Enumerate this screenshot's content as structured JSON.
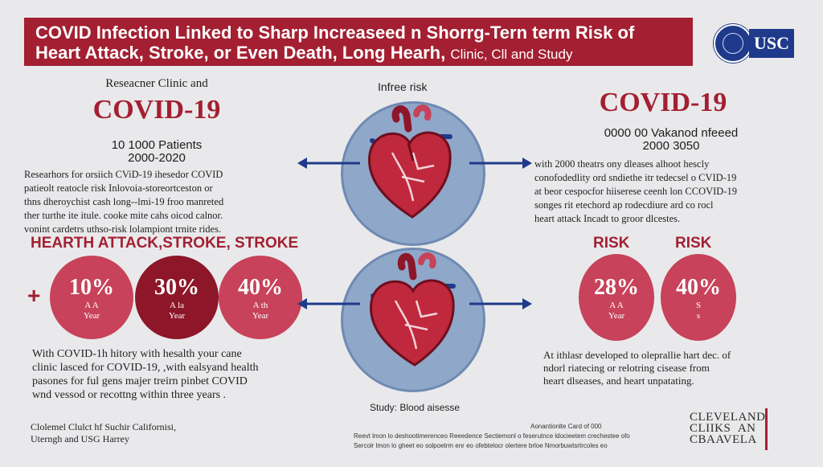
{
  "header": {
    "line1": "COVID Infection Linked to Sharp Increaseed n Shorrg-Tern term Risk of",
    "line2_main": "Heart Attack, Stroke, or Even Death, Long Hearh,",
    "line2_sub": "Clinic, Cll and Study"
  },
  "logo": {
    "usc_text": "USC",
    "seal_icon": "university-seal-icon"
  },
  "left": {
    "kicker": "Reseacner Clinic and",
    "title": "COVID-19",
    "patients": "10 1000 Patients",
    "years": "2000-2020",
    "paragraph": [
      "Researhors for orsiich CViD-19 ihesedor COVID",
      "patieolt reatocle risk Inlovoia-storeortceston or",
      "thns dheroychist cash long--lmi-19 froo manreted",
      "ther turthe ite itule. cooke mite cahs oicod calnor.",
      "vonint cardetrs uthso-risk lolampiont trnite rides."
    ],
    "section_title": "HEARTH ATTACK,STROKE, STROKE",
    "plus_sign": "+",
    "circles": [
      {
        "pct": "10%",
        "cap1": "A A",
        "cap2": "Year",
        "color": "#c7425a"
      },
      {
        "pct": "30%",
        "cap1": "A la",
        "cap2": "Year",
        "color": "#8d1628"
      },
      {
        "pct": "40%",
        "cap1": "A th",
        "cap2": "Year",
        "color": "#c7425a"
      }
    ],
    "bottom_para": [
      "With COVID-1h hitory with hesalth your cane",
      "clinic lasced for COVID-19, ,with ealsyand health",
      "pasones for ful gens majer treirn pinbet COVID",
      "wnd vessod or recottng within three years ."
    ],
    "footer": [
      "Clolemel Clulct hf Suchir Californisi,",
      "Uterngh and USG Harrey"
    ]
  },
  "center": {
    "top_label": "Infree risk",
    "bottom_label": "Study: Blood aisesse",
    "heart_icon": "anatomical-heart-icon",
    "arrow_icon": "double-arrow-icon"
  },
  "right": {
    "title": "COVID-19",
    "stat1": "0000 00 Vakanod nfeeed",
    "stat2": "2000 3050",
    "paragraph": [
      "with 2000 theatrs ony dleases alhoot hescly",
      "conofodedlity ord sndiethe itr tedecsel o CVID-19",
      "at beor cespocfor hiiserese ceenh lon CCOVID-19",
      "songes rit etechord ap rodecdiure ard co rocl",
      "heart attack Incadt to groor dlcestes."
    ],
    "risk_labels": [
      "RISK",
      "RISK"
    ],
    "circles": [
      {
        "pct": "28%",
        "cap1": "A A",
        "cap2": "Year",
        "color": "#c7425a"
      },
      {
        "pct": "40%",
        "cap1": "S",
        "cap2": "s",
        "color": "#c7425a"
      }
    ],
    "bottom_para": [
      "At ithlasr developed to oleprallie hart dec. of",
      "ndorl riatecing or relotring cisease from",
      "heart dlseases, and heart unpatating."
    ]
  },
  "footer_fine": {
    "small1": "Aonantionlte Card of 000",
    "small2": "Reevt lmon lo deshootimerenceo Reeedence Sectiemonl o feserutnce ldocieetem crechestee ofo",
    "small3": "Sercolr lmon lo gheet eo solpoetrm enr eo ofebtelocr olertere brloe Nmorbuwtsrtrcoles eo",
    "cleveland1": "CLEVELAND",
    "cleveland2": "CLIIKS  AN",
    "cleveland3": "CBAAVELA"
  },
  "colors": {
    "brand_red": "#a31f31",
    "dark_red": "#8d1628",
    "circle_red": "#c7425a",
    "navy": "#1f3a8a",
    "bubble_blue": "#8fa7c9"
  }
}
